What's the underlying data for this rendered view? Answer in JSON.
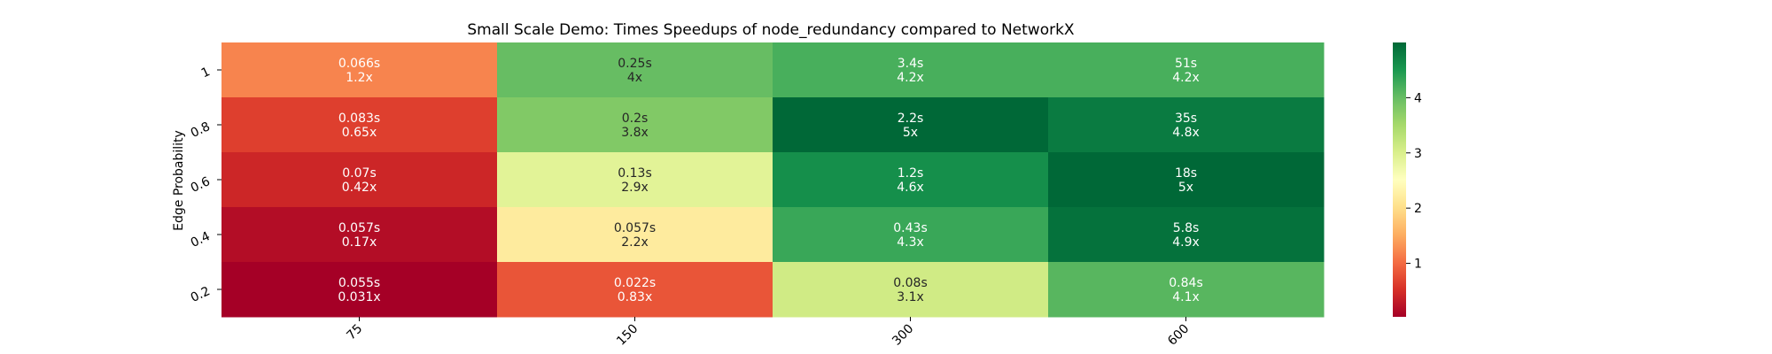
{
  "chart_data": {
    "type": "heatmap",
    "title": "Small Scale Demo: Times Speedups of node_redundancy compared to NetworkX",
    "xlabel": "",
    "ylabel": "Edge Probability",
    "x_categories": [
      "75",
      "150",
      "300",
      "600"
    ],
    "y_categories": [
      "1",
      "0.8",
      "0.6",
      "0.4",
      "0.2"
    ],
    "rows": [
      {
        "y": "1",
        "cells": [
          {
            "time": "0.066s",
            "speedup_label": "1.2x",
            "speedup": 1.2
          },
          {
            "time": "0.25s",
            "speedup_label": "4x",
            "speedup": 4.0
          },
          {
            "time": "3.4s",
            "speedup_label": "4.2x",
            "speedup": 4.2
          },
          {
            "time": "51s",
            "speedup_label": "4.2x",
            "speedup": 4.2
          }
        ]
      },
      {
        "y": "0.8",
        "cells": [
          {
            "time": "0.083s",
            "speedup_label": "0.65x",
            "speedup": 0.65
          },
          {
            "time": "0.2s",
            "speedup_label": "3.8x",
            "speedup": 3.8
          },
          {
            "time": "2.2s",
            "speedup_label": "5x",
            "speedup": 5.0
          },
          {
            "time": "35s",
            "speedup_label": "4.8x",
            "speedup": 4.8
          }
        ]
      },
      {
        "y": "0.6",
        "cells": [
          {
            "time": "0.07s",
            "speedup_label": "0.42x",
            "speedup": 0.42
          },
          {
            "time": "0.13s",
            "speedup_label": "2.9x",
            "speedup": 2.9
          },
          {
            "time": "1.2s",
            "speedup_label": "4.6x",
            "speedup": 4.6
          },
          {
            "time": "18s",
            "speedup_label": "5x",
            "speedup": 5.0
          }
        ]
      },
      {
        "y": "0.4",
        "cells": [
          {
            "time": "0.057s",
            "speedup_label": "0.17x",
            "speedup": 0.17
          },
          {
            "time": "0.057s",
            "speedup_label": "2.2x",
            "speedup": 2.2
          },
          {
            "time": "0.43s",
            "speedup_label": "4.3x",
            "speedup": 4.3
          },
          {
            "time": "5.8s",
            "speedup_label": "4.9x",
            "speedup": 4.9
          }
        ]
      },
      {
        "y": "0.2",
        "cells": [
          {
            "time": "0.055s",
            "speedup_label": "0.031x",
            "speedup": 0.031
          },
          {
            "time": "0.022s",
            "speedup_label": "0.83x",
            "speedup": 0.83
          },
          {
            "time": "0.08s",
            "speedup_label": "3.1x",
            "speedup": 3.1
          },
          {
            "time": "0.84s",
            "speedup_label": "4.1x",
            "speedup": 4.1
          }
        ]
      }
    ],
    "colorbar": {
      "colormap": "RdYlGn",
      "range": [
        0.031,
        5.0
      ],
      "ticks": [
        1,
        2,
        3,
        4
      ]
    }
  }
}
